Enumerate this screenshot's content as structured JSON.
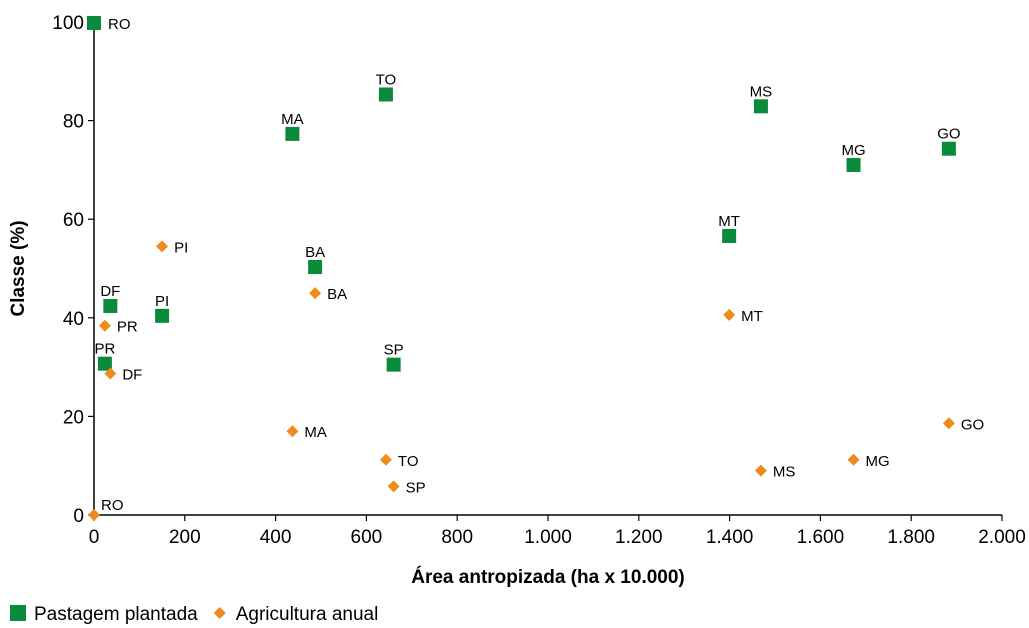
{
  "chart_data": {
    "type": "scatter",
    "xlabel": "Área antropizada (ha x 10.000)",
    "ylabel": "Classe (%)",
    "xlim": [
      0,
      2000
    ],
    "ylim": [
      0,
      100
    ],
    "xticks": [
      0,
      200,
      400,
      600,
      800,
      1000,
      1200,
      1400,
      1600,
      1800,
      2000
    ],
    "xtick_labels": [
      "0",
      "200",
      "400",
      "600",
      "800",
      "1.000",
      "1.200",
      "1.400",
      "1.600",
      "1.800",
      "2.000"
    ],
    "yticks": [
      0,
      20,
      40,
      60,
      80,
      100
    ],
    "ytick_labels": [
      "0",
      "20",
      "40",
      "60",
      "80",
      "100"
    ],
    "grid": false,
    "legend_position": "bottom-left",
    "series": [
      {
        "name": "Pastagem plantada",
        "marker": "square",
        "color": "#0a8a3a",
        "points": [
          {
            "label": "RO",
            "x": 0,
            "y": 99.8
          },
          {
            "label": "TO",
            "x": 643,
            "y": 85.3
          },
          {
            "label": "MA",
            "x": 437,
            "y": 77.3
          },
          {
            "label": "MS",
            "x": 1469,
            "y": 82.9
          },
          {
            "label": "MG",
            "x": 1673,
            "y": 71.0
          },
          {
            "label": "GO",
            "x": 1883,
            "y": 74.3
          },
          {
            "label": "MT",
            "x": 1399,
            "y": 56.6
          },
          {
            "label": "BA",
            "x": 487,
            "y": 50.3
          },
          {
            "label": "DF",
            "x": 36,
            "y": 42.4
          },
          {
            "label": "PI",
            "x": 150,
            "y": 40.4
          },
          {
            "label": "PR",
            "x": 24,
            "y": 30.7
          },
          {
            "label": "SP",
            "x": 660,
            "y": 30.5
          }
        ]
      },
      {
        "name": "Agricultura anual",
        "marker": "diamond",
        "color": "#f08a1c",
        "points": [
          {
            "label": "RO",
            "x": 0,
            "y": 0
          },
          {
            "label": "PI",
            "x": 150,
            "y": 54.5
          },
          {
            "label": "BA",
            "x": 487,
            "y": 45.0
          },
          {
            "label": "PR",
            "x": 24,
            "y": 38.4
          },
          {
            "label": "DF",
            "x": 36,
            "y": 28.7
          },
          {
            "label": "MT",
            "x": 1399,
            "y": 40.6
          },
          {
            "label": "MA",
            "x": 437,
            "y": 17.0
          },
          {
            "label": "TO",
            "x": 643,
            "y": 11.2
          },
          {
            "label": "SP",
            "x": 660,
            "y": 5.8
          },
          {
            "label": "MS",
            "x": 1469,
            "y": 9.0
          },
          {
            "label": "MG",
            "x": 1673,
            "y": 11.2
          },
          {
            "label": "GO",
            "x": 1883,
            "y": 18.6
          }
        ]
      }
    ]
  }
}
